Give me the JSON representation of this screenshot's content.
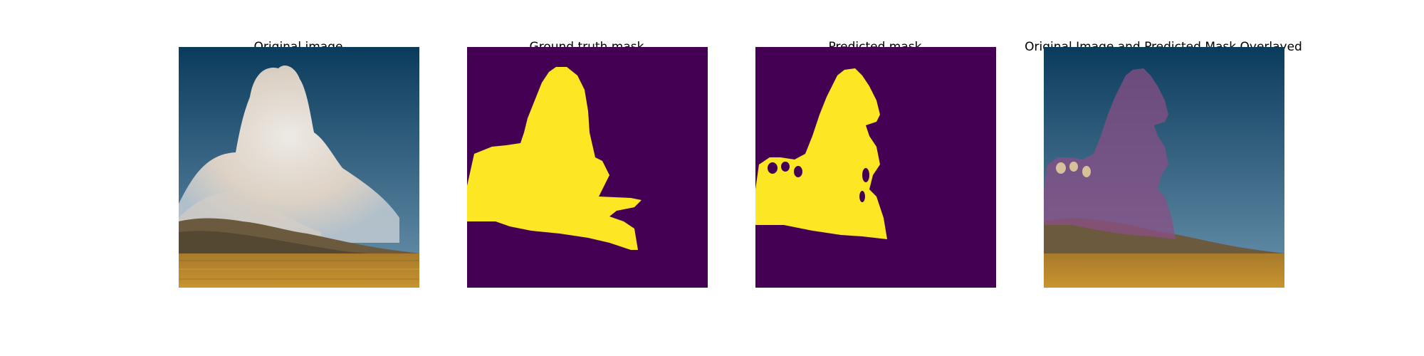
{
  "figure": {
    "panels": [
      {
        "title": "Original image"
      },
      {
        "title": "Ground truth mask"
      },
      {
        "title": "Predicted mask"
      },
      {
        "title": "Original Image and Predicted Mask Overlayed"
      }
    ]
  },
  "colors": {
    "mask_background": "#440154",
    "mask_foreground": "#fde725",
    "sky_top": "#0b3b5c",
    "sky_bottom": "#5b86a4",
    "smoke": "#efe6dc",
    "hill": "#6b5a3d",
    "grass": "#b8862d"
  },
  "icons": [
    "none"
  ]
}
